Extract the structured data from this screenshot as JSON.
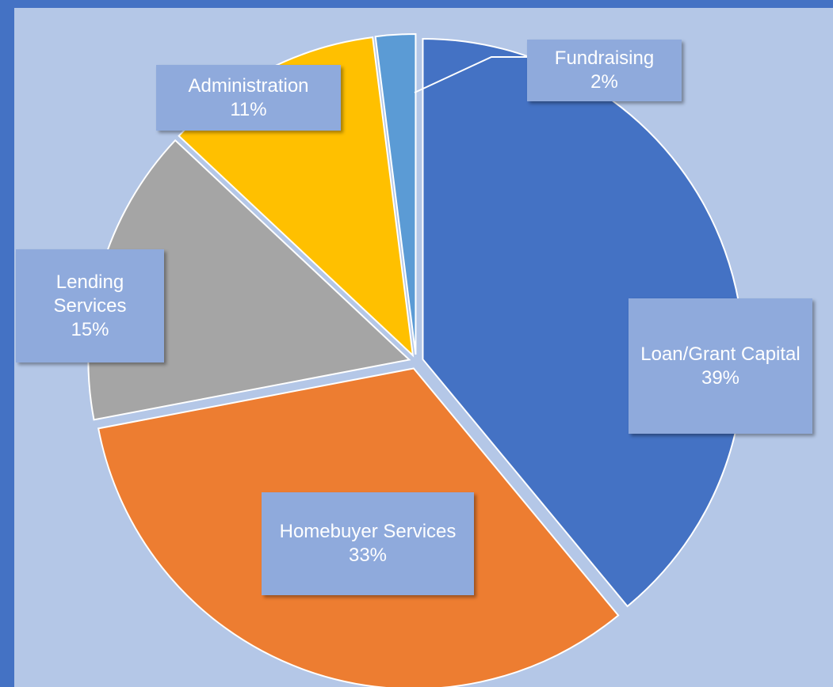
{
  "chart_data": {
    "type": "pie",
    "categories": [
      "Loan/Grant Capital",
      "Homebuyer Services",
      "Lending Services",
      "Administration",
      "Fundraising"
    ],
    "values": [
      39,
      33,
      15,
      11,
      2
    ],
    "value_labels": [
      "39%",
      "33%",
      "15%",
      "11%",
      "2%"
    ],
    "colors": [
      "#4472c4",
      "#ed7d31",
      "#a5a5a5",
      "#ffc000",
      "#5b9bd5"
    ]
  }
}
